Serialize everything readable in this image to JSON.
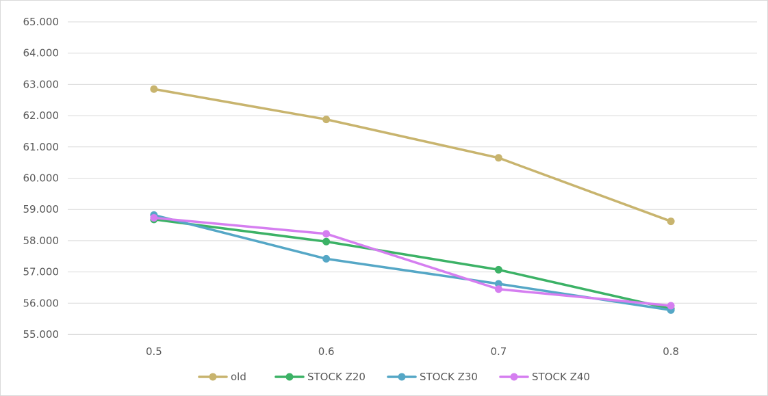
{
  "chart_data": {
    "type": "line",
    "title": "",
    "xlabel": "",
    "ylabel": "",
    "categories": [
      "0.5",
      "0.6",
      "0.7",
      "0.8"
    ],
    "ylim": [
      55,
      65
    ],
    "ytick_step": 1,
    "ytick_labels": [
      "55.000",
      "56.000",
      "57.000",
      "58.000",
      "59.000",
      "60.000",
      "61.000",
      "62.000",
      "63.000",
      "64.000",
      "65.000"
    ],
    "grid": "horizontal",
    "legend_position": "bottom",
    "series": [
      {
        "name": "old",
        "color": "#c8b46e",
        "values": [
          62.85,
          61.88,
          60.65,
          58.62
        ]
      },
      {
        "name": "STOCK Z20",
        "color": "#3cb266",
        "values": [
          58.68,
          57.97,
          57.07,
          55.82
        ]
      },
      {
        "name": "STOCK Z30",
        "color": "#55a7c6",
        "values": [
          58.82,
          57.42,
          56.62,
          55.78
        ]
      },
      {
        "name": "STOCK Z40",
        "color": "#d57ef0",
        "values": [
          58.73,
          58.22,
          56.45,
          55.92
        ]
      }
    ]
  }
}
